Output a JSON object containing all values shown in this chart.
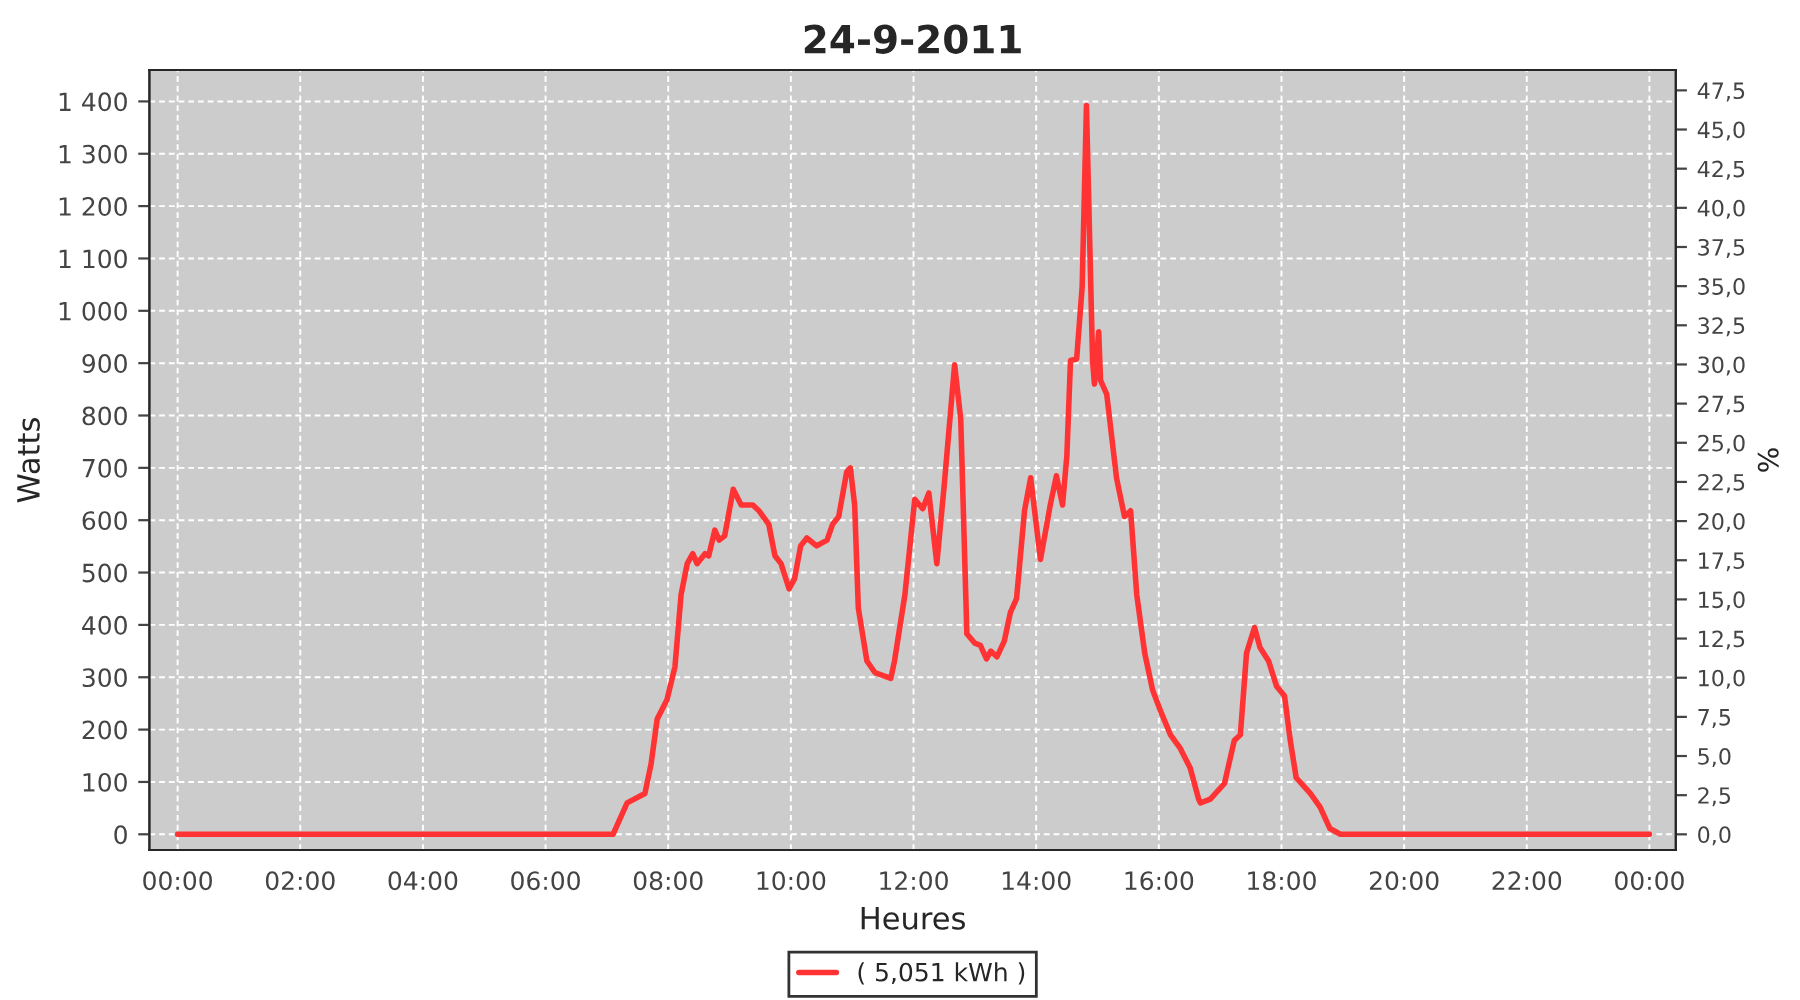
{
  "chart_data": {
    "type": "line",
    "title": "24-9-2011",
    "xlabel": "Heures",
    "ylabel": "Watts",
    "y2label": "%",
    "x": [
      0,
      7.0,
      7.1,
      7.33,
      7.62,
      7.72,
      7.82,
      7.98,
      8.11,
      8.21,
      8.31,
      8.4,
      8.47,
      8.6,
      8.66,
      8.76,
      8.83,
      8.92,
      9.06,
      9.19,
      9.38,
      9.48,
      9.64,
      9.74,
      9.84,
      9.97,
      10.06,
      10.16,
      10.26,
      10.42,
      10.59,
      10.68,
      10.78,
      10.91,
      10.97,
      11.04,
      11.1,
      11.24,
      11.37,
      11.63,
      11.69,
      11.86,
      12.02,
      12.15,
      12.25,
      12.38,
      12.5,
      12.67,
      12.77,
      12.87,
      13.0,
      13.09,
      13.19,
      13.26,
      13.36,
      13.48,
      13.58,
      13.68,
      13.81,
      13.91,
      14.07,
      14.23,
      14.33,
      14.43,
      14.5,
      14.56,
      14.66,
      14.75,
      14.82,
      14.92,
      14.95,
      15.02,
      15.05,
      15.15,
      15.31,
      15.44,
      15.54,
      15.64,
      15.77,
      15.9,
      16.03,
      16.19,
      16.35,
      16.51,
      16.65,
      16.68,
      16.84,
      17.07,
      17.23,
      17.33,
      17.43,
      17.56,
      17.65,
      17.79,
      17.92,
      18.05,
      18.14,
      18.24,
      18.47,
      18.63,
      18.79,
      18.96,
      24
    ],
    "series": [
      {
        "name": "( 5,051 kWh )",
        "color": "#ff3333",
        "values": [
          0,
          0,
          0,
          60,
          78,
          134,
          220,
          257,
          320,
          458,
          517,
          536,
          517,
          536,
          532,
          581,
          562,
          570,
          659,
          629,
          629,
          618,
          592,
          532,
          517,
          469,
          488,
          551,
          566,
          551,
          562,
          592,
          607,
          692,
          700,
          629,
          432,
          331,
          309,
          298,
          331,
          458,
          640,
          622,
          652,
          517,
          666,
          897,
          793,
          383,
          365,
          361,
          335,
          350,
          339,
          369,
          424,
          450,
          618,
          681,
          525,
          629,
          685,
          629,
          722,
          905,
          908,
          1046,
          1392,
          905,
          860,
          960,
          867,
          841,
          681,
          607,
          618,
          458,
          346,
          275,
          235,
          190,
          164,
          127,
          67,
          60,
          67,
          97,
          179,
          190,
          346,
          395,
          357,
          331,
          283,
          264,
          182,
          108,
          78,
          52,
          11,
          0,
          0
        ]
      }
    ],
    "xlim": [
      -0.46,
      24.43
    ],
    "xticks": [
      {
        "value": 0,
        "label": "00:00"
      },
      {
        "value": 2,
        "label": "02:00"
      },
      {
        "value": 4,
        "label": "04:00"
      },
      {
        "value": 6,
        "label": "06:00"
      },
      {
        "value": 8,
        "label": "08:00"
      },
      {
        "value": 10,
        "label": "10:00"
      },
      {
        "value": 12,
        "label": "12:00"
      },
      {
        "value": 14,
        "label": "14:00"
      },
      {
        "value": 16,
        "label": "16:00"
      },
      {
        "value": 18,
        "label": "18:00"
      },
      {
        "value": 20,
        "label": "20:00"
      },
      {
        "value": 22,
        "label": "22:00"
      },
      {
        "value": 24,
        "label": "00:00"
      }
    ],
    "ylim": [
      -30,
      1460
    ],
    "yticks": [
      0,
      100,
      200,
      300,
      400,
      500,
      600,
      700,
      800,
      900,
      {
        "value": 1000,
        "label": "1 000"
      },
      {
        "value": 1100,
        "label": "1 100"
      },
      {
        "value": 1200,
        "label": "1 200"
      },
      {
        "value": 1300,
        "label": "1 300"
      },
      {
        "value": 1400,
        "label": "1 400"
      }
    ],
    "y2lim": [
      -1.0,
      48.8
    ],
    "y2ticks": [
      {
        "value": 0,
        "label": "0,0"
      },
      {
        "value": 2.5,
        "label": "2,5"
      },
      {
        "value": 5,
        "label": "5,0"
      },
      {
        "value": 7.5,
        "label": "7,5"
      },
      {
        "value": 10,
        "label": "10,0"
      },
      {
        "value": 12.5,
        "label": "12,5"
      },
      {
        "value": 15,
        "label": "15,0"
      },
      {
        "value": 17.5,
        "label": "17,5"
      },
      {
        "value": 20,
        "label": "20,0"
      },
      {
        "value": 22.5,
        "label": "22,5"
      },
      {
        "value": 25,
        "label": "25,0"
      },
      {
        "value": 27.5,
        "label": "27,5"
      },
      {
        "value": 30,
        "label": "30,0"
      },
      {
        "value": 32.5,
        "label": "32,5"
      },
      {
        "value": 35,
        "label": "35,0"
      },
      {
        "value": 37.5,
        "label": "37,5"
      },
      {
        "value": 40,
        "label": "40,0"
      },
      {
        "value": 42.5,
        "label": "42,5"
      },
      {
        "value": 45,
        "label": "45,0"
      },
      {
        "value": 47.5,
        "label": "47,5"
      }
    ],
    "grid": true,
    "legend": "bottom"
  }
}
